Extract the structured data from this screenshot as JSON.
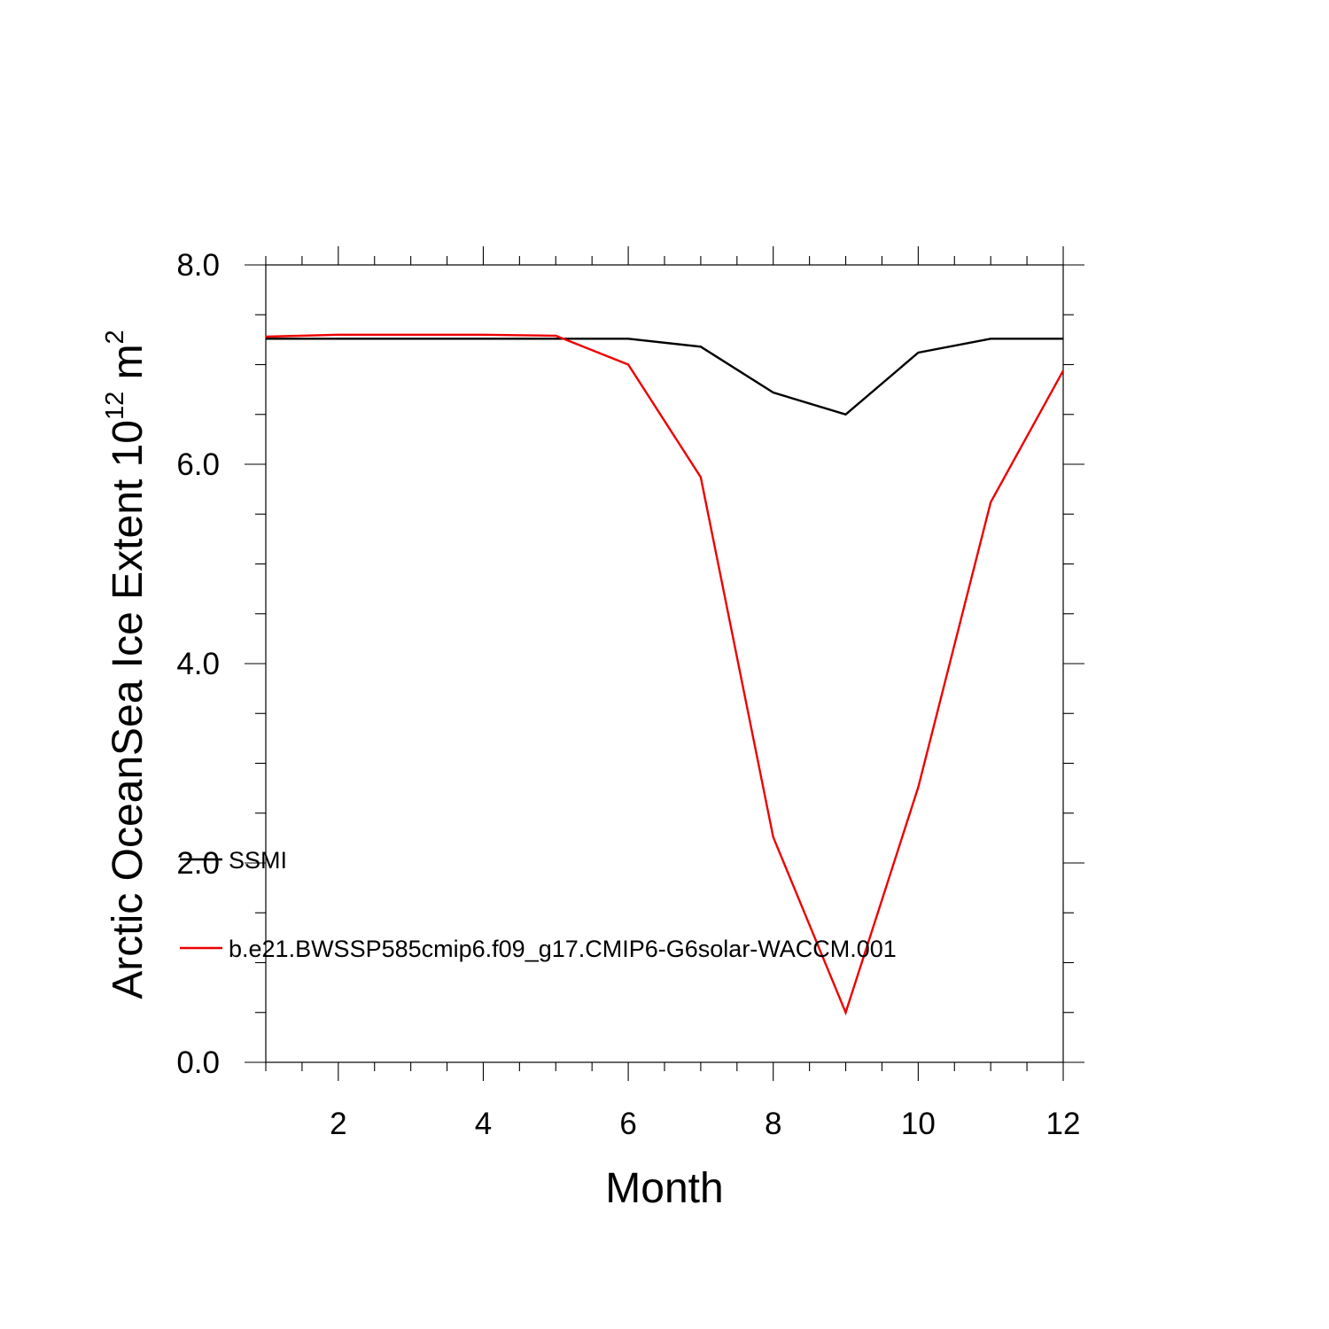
{
  "chart_data": {
    "type": "line",
    "title": "",
    "xlabel": "Month",
    "ylabel": "Arctic OceanSea Ice Extent 10",
    "ylabel_sup": "12",
    "ylabel_unit": " m",
    "ylabel_unit_sup": "2",
    "xlim": [
      1,
      12
    ],
    "ylim": [
      0,
      8
    ],
    "x_ticks": [
      2,
      4,
      6,
      8,
      10,
      12
    ],
    "x_tick_labels": [
      "2",
      "4",
      "6",
      "8",
      "10",
      "12"
    ],
    "y_ticks": [
      0,
      2,
      4,
      6,
      8
    ],
    "y_tick_labels": [
      "0.0",
      "2.0",
      "4.0",
      "6.0",
      "8.0"
    ],
    "grid": false,
    "legend_position": "inside-lower-left",
    "x": [
      1,
      2,
      3,
      4,
      5,
      6,
      7,
      8,
      9,
      10,
      11,
      12
    ],
    "series": [
      {
        "name": "SSMI",
        "color": "#000000",
        "values": [
          7.26,
          7.26,
          7.26,
          7.26,
          7.26,
          7.26,
          7.18,
          6.72,
          6.5,
          7.12,
          7.26,
          7.26
        ]
      },
      {
        "name": "b.e21.BWSSP585cmip6.f09_g17.CMIP6-G6solar-WACCM.001",
        "color": "#ee0000",
        "values": [
          7.28,
          7.3,
          7.3,
          7.3,
          7.29,
          7.0,
          5.87,
          2.26,
          0.5,
          2.76,
          5.62,
          6.94
        ]
      }
    ]
  }
}
